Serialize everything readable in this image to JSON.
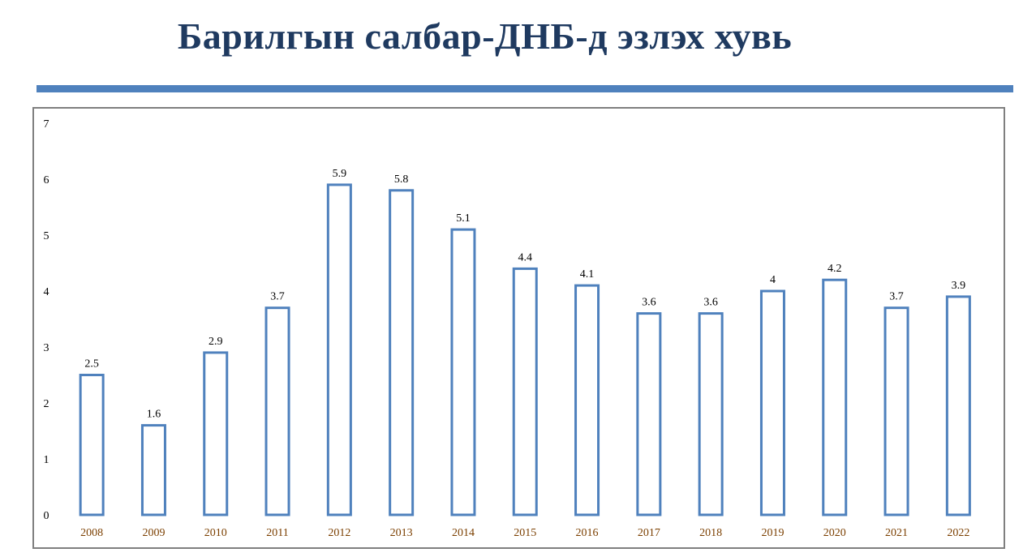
{
  "slide": {
    "title": "Барилгын салбар-ДНБ-д эзлэх хувь"
  },
  "colors": {
    "title": "#1f3a60",
    "rule": "#4f81bd",
    "bar_stroke": "#4f81bd",
    "bar_fill": "#ffffff",
    "x_tick_text": "#7b3f00",
    "frame": "#7f7f7f"
  },
  "chart_data": {
    "type": "bar",
    "categories": [
      "2008",
      "2009",
      "2010",
      "2011",
      "2012",
      "2013",
      "2014",
      "2015",
      "2016",
      "2017",
      "2018",
      "2019",
      "2020",
      "2021",
      "2022"
    ],
    "values": [
      2.5,
      1.6,
      2.9,
      3.7,
      5.9,
      5.8,
      5.1,
      4.4,
      4.1,
      3.6,
      3.6,
      4,
      4.2,
      3.7,
      3.9
    ],
    "data_labels": [
      "2.5",
      "1.6",
      "2.9",
      "3.7",
      "5.9",
      "5.8",
      "5.1",
      "4.4",
      "4.1",
      "3.6",
      "3.6",
      "4",
      "4.2",
      "3.7",
      "3.9"
    ],
    "y_ticks": [
      "0",
      "1",
      "2",
      "3",
      "4",
      "5",
      "6",
      "7"
    ],
    "ylim": [
      0,
      7
    ],
    "xlabel": "",
    "ylabel": "",
    "grid": false,
    "legend": "none"
  }
}
